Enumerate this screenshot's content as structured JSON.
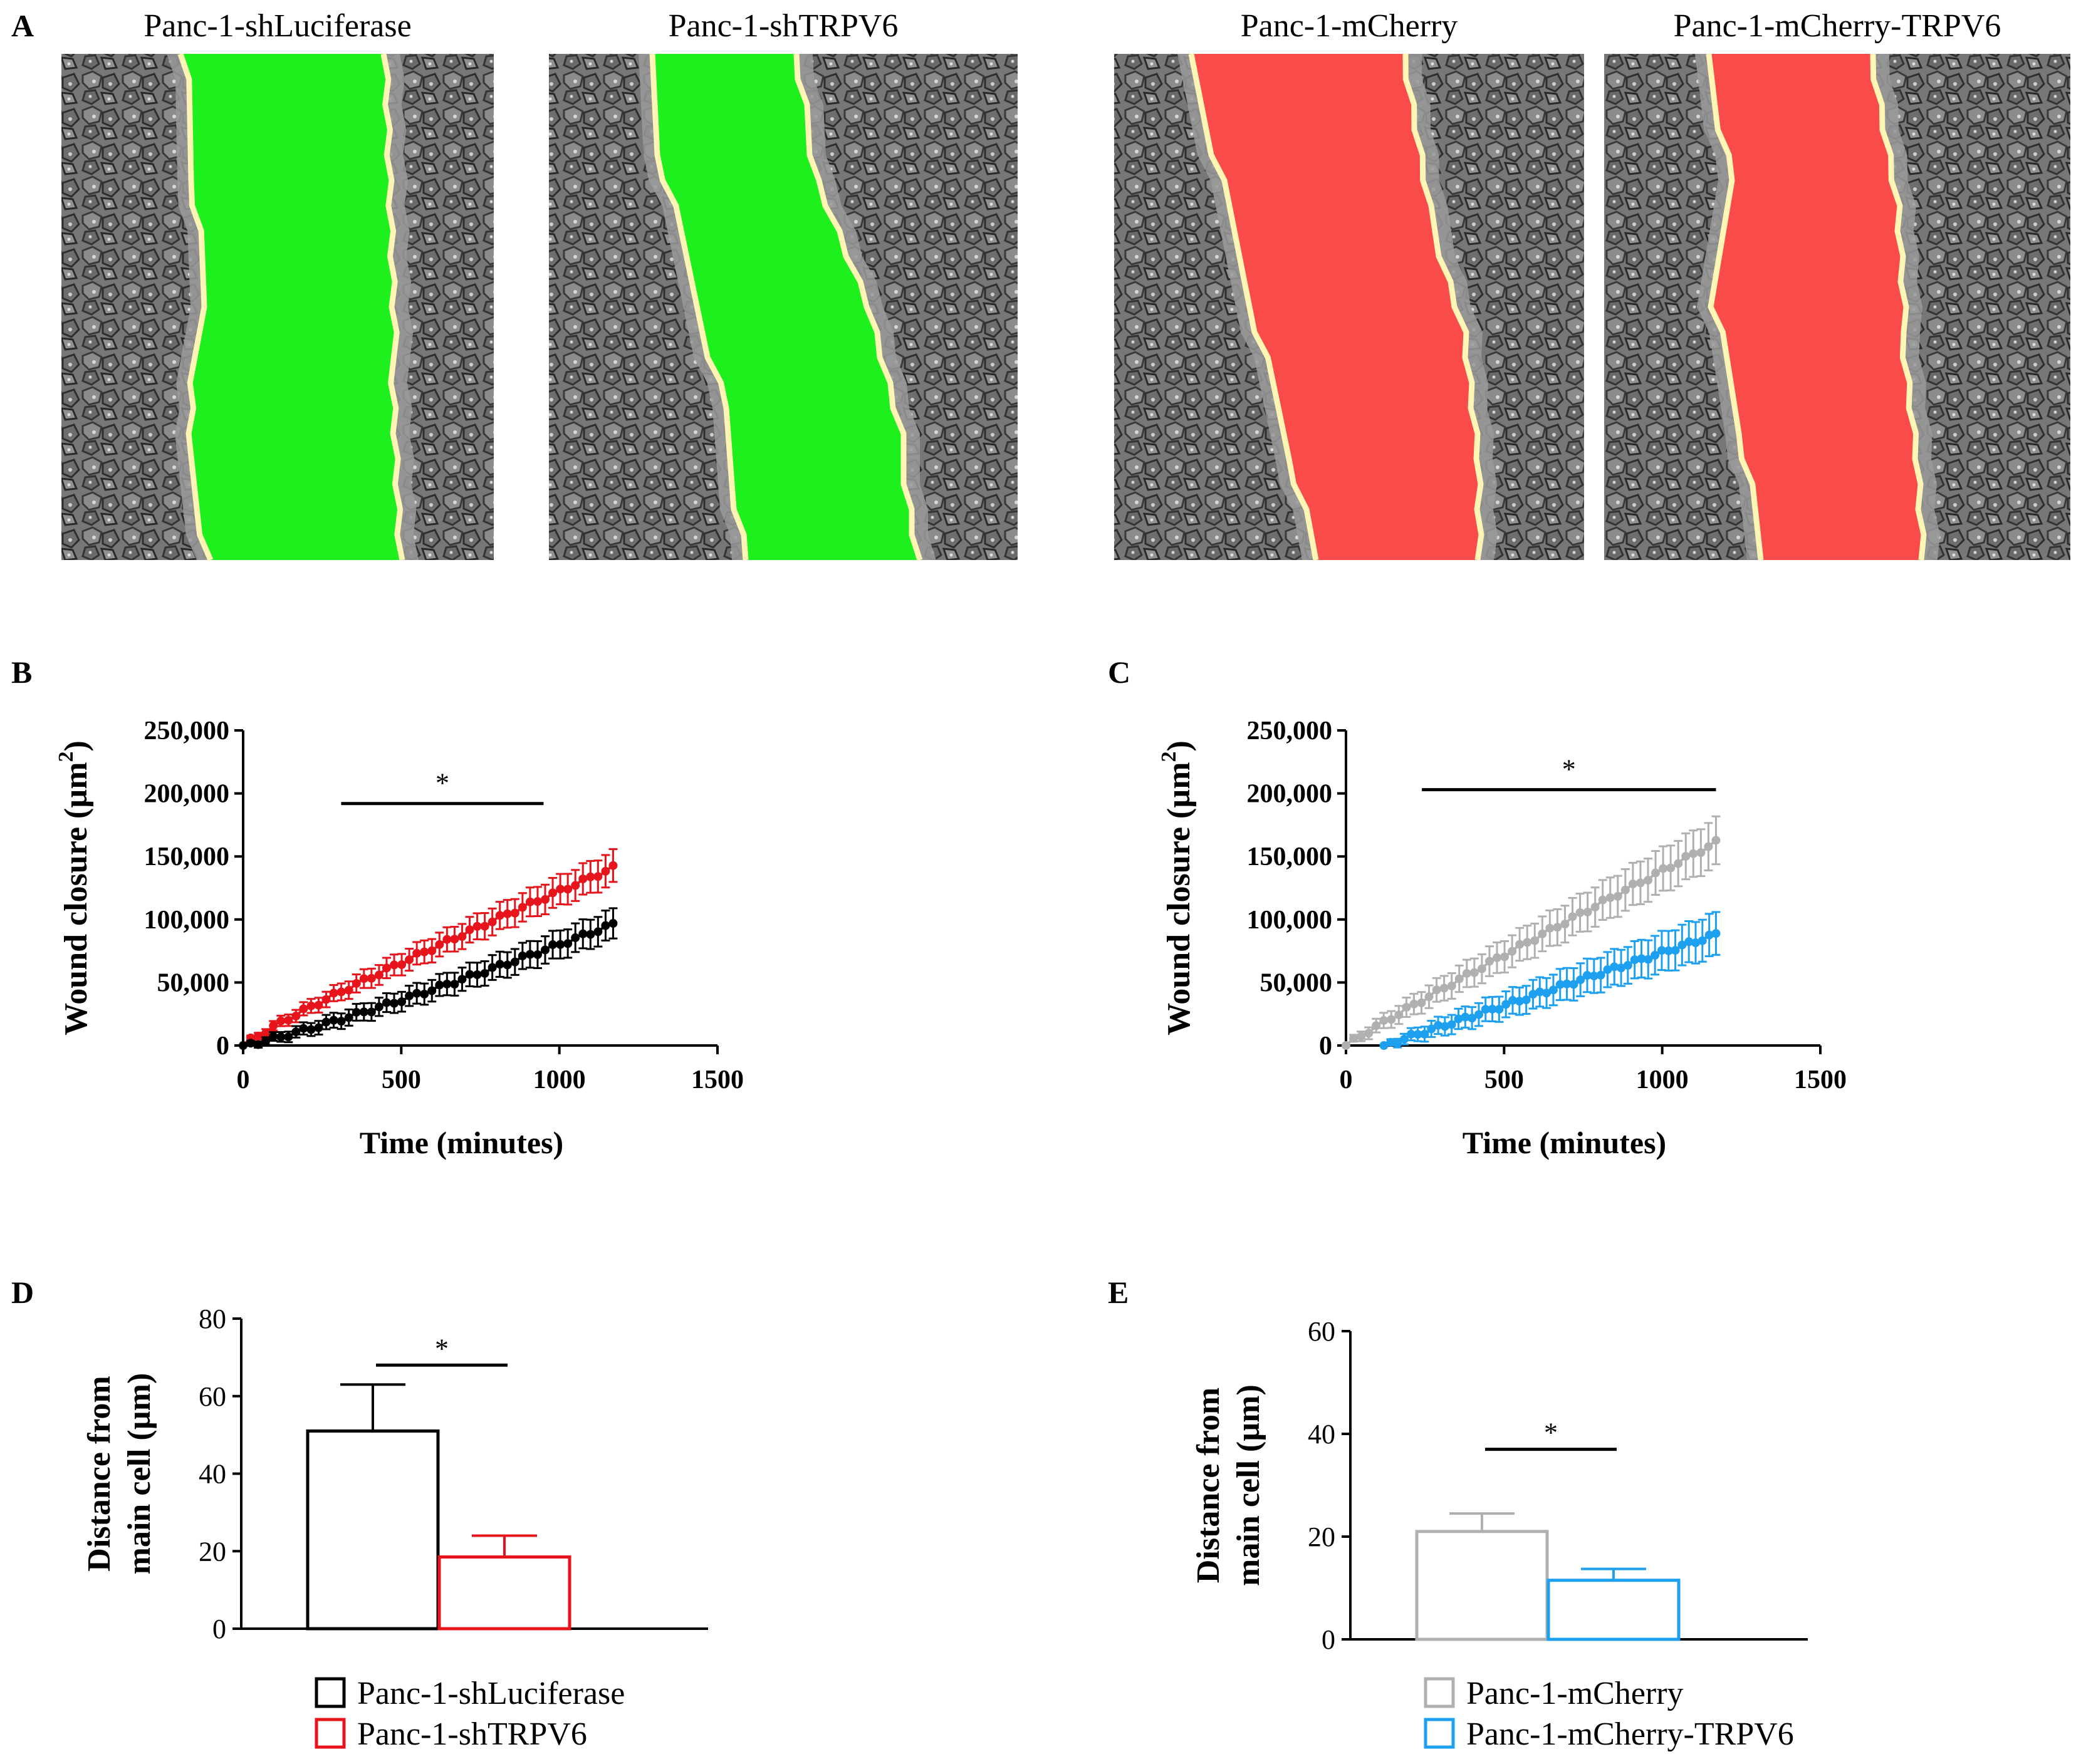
{
  "colors": {
    "black": "#000000",
    "red": "#e8141b",
    "grey": "#b0b0b0",
    "blue": "#1ea0f0",
    "green_overlay": "#1ef01e",
    "red_overlay": "#fa4b4b",
    "edge_line": "#fff5b4",
    "cell_bg": "#7a7a7a"
  },
  "panels": {
    "A": "A",
    "B": "B",
    "C": "C",
    "D": "D",
    "E": "E"
  },
  "panel_a": {
    "images": [
      {
        "title": "Panc-1-shLuciferase",
        "overlay": "green"
      },
      {
        "title": "Panc-1-shTRPV6",
        "overlay": "green"
      },
      {
        "title": "Panc-1-mCherry",
        "overlay": "red"
      },
      {
        "title": "Panc-1-mCherry-TRPV6",
        "overlay": "red"
      }
    ]
  },
  "chart_data": [
    {
      "id": "B",
      "type": "line",
      "xlabel": "Time (minutes)",
      "ylabel": "Wound closure (µm",
      "ylabel_sup": "2",
      "ylabel_end": ")",
      "xlim": [
        0,
        1500
      ],
      "ylim": [
        0,
        250000
      ],
      "xticks": [
        0,
        500,
        1000,
        1500
      ],
      "xtick_labels": [
        "0",
        "500",
        "1000",
        "1500"
      ],
      "yticks": [
        0,
        50000,
        100000,
        150000,
        200000,
        250000
      ],
      "ytick_labels": [
        "0",
        "50,000",
        "100,000",
        "150,000",
        "200,000",
        "250,000"
      ],
      "significance": {
        "x1": 310,
        "x2": 950,
        "y": 192000,
        "label": "*"
      },
      "series": [
        {
          "name": "Panc-1-shTRPV6",
          "color": "red",
          "end": 141000,
          "curve": 0.9,
          "err_end": 13000,
          "x_start": 0
        },
        {
          "name": "Panc-1-shLuciferase",
          "color": "black",
          "end": 96000,
          "curve": 1.15,
          "err_end": 12000,
          "x_start": 0
        }
      ],
      "x_end": 1170,
      "n_points": 50
    },
    {
      "id": "C",
      "type": "line",
      "xlabel": "Time (minutes)",
      "ylabel": "Wound closure (µm",
      "ylabel_sup": "2",
      "ylabel_end": ")",
      "xlim": [
        0,
        1500
      ],
      "ylim": [
        0,
        250000
      ],
      "xticks": [
        0,
        500,
        1000,
        1500
      ],
      "xtick_labels": [
        "0",
        "500",
        "1000",
        "1500"
      ],
      "yticks": [
        0,
        50000,
        100000,
        150000,
        200000,
        250000
      ],
      "ytick_labels": [
        "0",
        "50,000",
        "100,000",
        "150,000",
        "200,000",
        "250,000"
      ],
      "significance": {
        "x1": 240,
        "x2": 1170,
        "y": 203000,
        "label": "*"
      },
      "series": [
        {
          "name": "Panc-1-mCherry",
          "color": "grey",
          "end": 161000,
          "curve": 0.95,
          "err_end": 19000,
          "x_start": 0
        },
        {
          "name": "Panc-1-mCherry-TRPV6",
          "color": "blue",
          "end": 88000,
          "curve": 1.0,
          "err_end": 17000,
          "x_start": 120
        }
      ],
      "x_end": 1170,
      "n_points": 50
    },
    {
      "id": "D",
      "type": "bar",
      "ylabel_line1": "Distance from",
      "ylabel_line2": "main cell (µm)",
      "ylim": [
        0,
        80
      ],
      "yticks": [
        0,
        20,
        40,
        60,
        80
      ],
      "ytick_labels": [
        "0",
        "20",
        "40",
        "60",
        "80"
      ],
      "categories": [
        "Panc-1-shLuciferase",
        "Panc-1-shTRPV6"
      ],
      "values": [
        51,
        18.5
      ],
      "errors": [
        12,
        5.5
      ],
      "colors": [
        "black",
        "red"
      ],
      "significance": {
        "label": "*",
        "y": 68
      },
      "legend": [
        "Panc-1-shLuciferase",
        "Panc-1-shTRPV6"
      ]
    },
    {
      "id": "E",
      "type": "bar",
      "ylabel_line1": "Distance from",
      "ylabel_line2": "main cell (µm)",
      "ylim": [
        0,
        60
      ],
      "yticks": [
        0,
        20,
        40,
        60
      ],
      "ytick_labels": [
        "0",
        "20",
        "40",
        "60"
      ],
      "categories": [
        "Panc-1-mCherry",
        "Panc-1-mCherry-TRPV6"
      ],
      "values": [
        21,
        11.5
      ],
      "errors": [
        3.5,
        2.2
      ],
      "colors": [
        "grey",
        "blue"
      ],
      "significance": {
        "label": "*",
        "y": 37
      },
      "legend": [
        "Panc-1-mCherry",
        "Panc-1-mCherry-TRPV6"
      ]
    }
  ]
}
